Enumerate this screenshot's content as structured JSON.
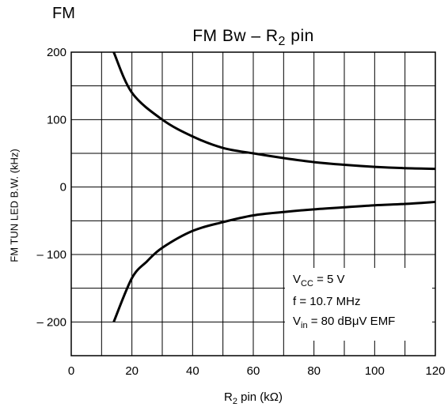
{
  "header": {
    "label": "FM",
    "title_main": "FM Bw  –  R",
    "title_sub": "2",
    "title_tail": " pin"
  },
  "chart_data": {
    "type": "line",
    "xlabel_main": "R",
    "xlabel_sub": "2",
    "xlabel_tail": " pin   (kΩ)",
    "ylabel": "FM TUN LED B.W.   (kHz)",
    "xlim": [
      0,
      120
    ],
    "ylim": [
      -250,
      200
    ],
    "x_ticks": [
      "0",
      "20",
      "40",
      "60",
      "80",
      "100",
      "120"
    ],
    "y_ticks": [
      "200",
      "100",
      "0",
      "– 100",
      "– 200"
    ],
    "y_tick_values": [
      200,
      100,
      0,
      -100,
      -200
    ],
    "grid": true,
    "series": [
      {
        "x": [
          14,
          20,
          30,
          40,
          50,
          60,
          70,
          80,
          90,
          100,
          110,
          120
        ],
        "y": [
          200,
          140,
          100,
          75,
          58,
          50,
          43,
          37,
          33,
          30,
          28,
          27
        ]
      },
      {
        "x": [
          14,
          20,
          25,
          30,
          40,
          50,
          60,
          70,
          80,
          90,
          100,
          110,
          120
        ],
        "y": [
          -200,
          -135,
          -110,
          -90,
          -65,
          -52,
          -42,
          -37,
          -33,
          -30,
          -27,
          -25,
          -22
        ]
      }
    ],
    "annotation": {
      "vcc_main": "V",
      "vcc_sub": "CC",
      "vcc_tail": " = 5 V",
      "freq": "f = 10.7 MHz",
      "vin_main": "V",
      "vin_sub": "in",
      "vin_tail": " = 80 dBμV EMF"
    }
  }
}
